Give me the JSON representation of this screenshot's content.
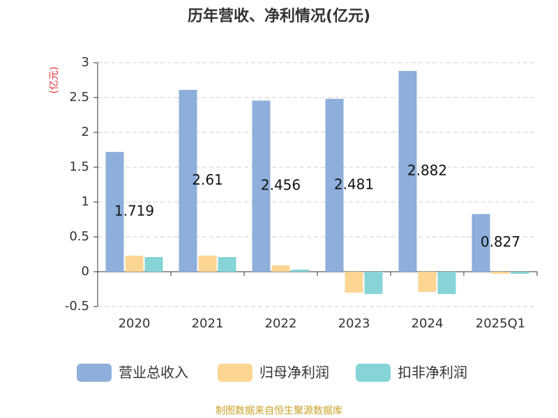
{
  "chart_data": {
    "type": "bar",
    "title": "历年营收、净利情况(亿元)",
    "y_label": "(亿元)",
    "categories": [
      "2020",
      "2021",
      "2022",
      "2023",
      "2024",
      "2025Q1"
    ],
    "series": [
      {
        "name": "营业总收入",
        "color": "#8eaedb",
        "values": [
          1.719,
          2.61,
          2.456,
          2.481,
          2.882,
          0.827
        ],
        "show_labels": true
      },
      {
        "name": "归母净利润",
        "color": "#fdd593",
        "values": [
          0.23,
          0.23,
          0.09,
          -0.3,
          -0.29,
          -0.03
        ]
      },
      {
        "name": "扣非净利润",
        "color": "#86d4d6",
        "values": [
          0.21,
          0.21,
          0.03,
          -0.32,
          -0.32,
          -0.03
        ]
      }
    ],
    "ylim": [
      -0.5,
      3
    ],
    "yticks": [
      3,
      2.5,
      2,
      1.5,
      1,
      0.5,
      0,
      -0.5
    ],
    "grid": true,
    "source": "制图数据来自恒生聚源数据库"
  }
}
